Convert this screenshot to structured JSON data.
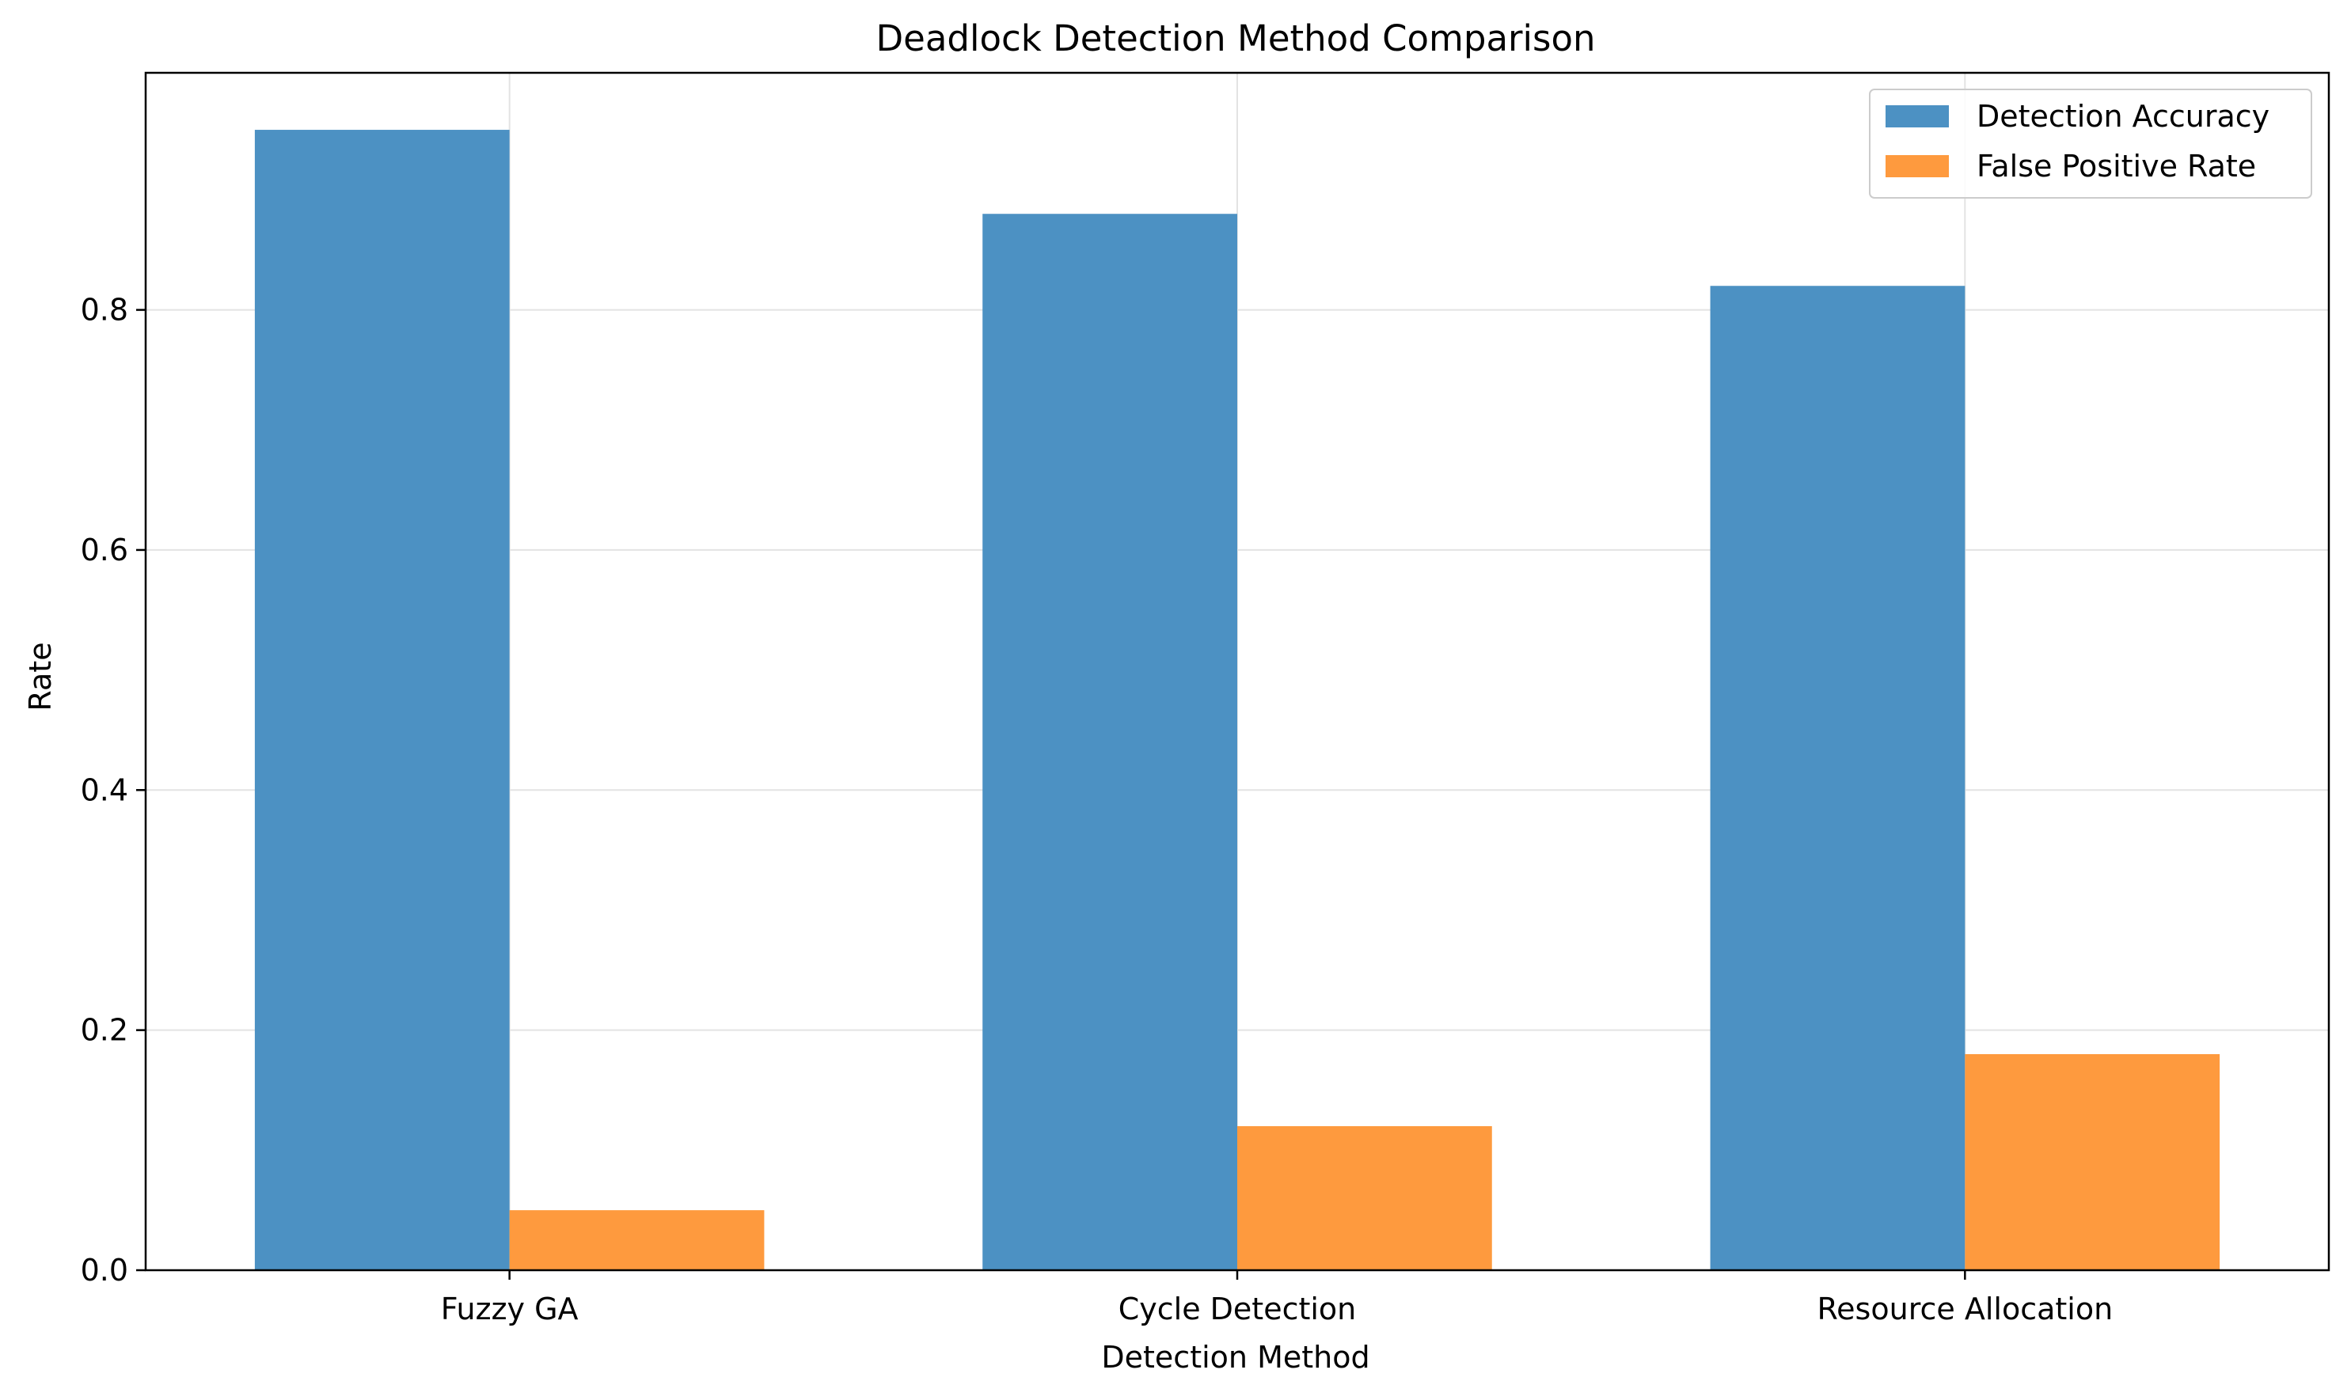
{
  "chart_data": {
    "type": "bar",
    "title": "Deadlock Detection Method Comparison",
    "xlabel": "Detection Method",
    "ylabel": "Rate",
    "categories": [
      "Fuzzy GA",
      "Cycle Detection",
      "Resource Allocation"
    ],
    "series": [
      {
        "name": "Detection Accuracy",
        "values": [
          0.95,
          0.88,
          0.82
        ],
        "color": "#4c91c3"
      },
      {
        "name": "False Positive Rate",
        "values": [
          0.05,
          0.12,
          0.18
        ],
        "color": "#fe9a3e"
      }
    ],
    "ylim": [
      0,
      0.9975
    ],
    "yticks": [
      0.0,
      0.2,
      0.4,
      0.6,
      0.8
    ],
    "ytick_labels": [
      "0.0",
      "0.2",
      "0.4",
      "0.6",
      "0.8"
    ],
    "grid": true,
    "legend_position": "top-right"
  }
}
